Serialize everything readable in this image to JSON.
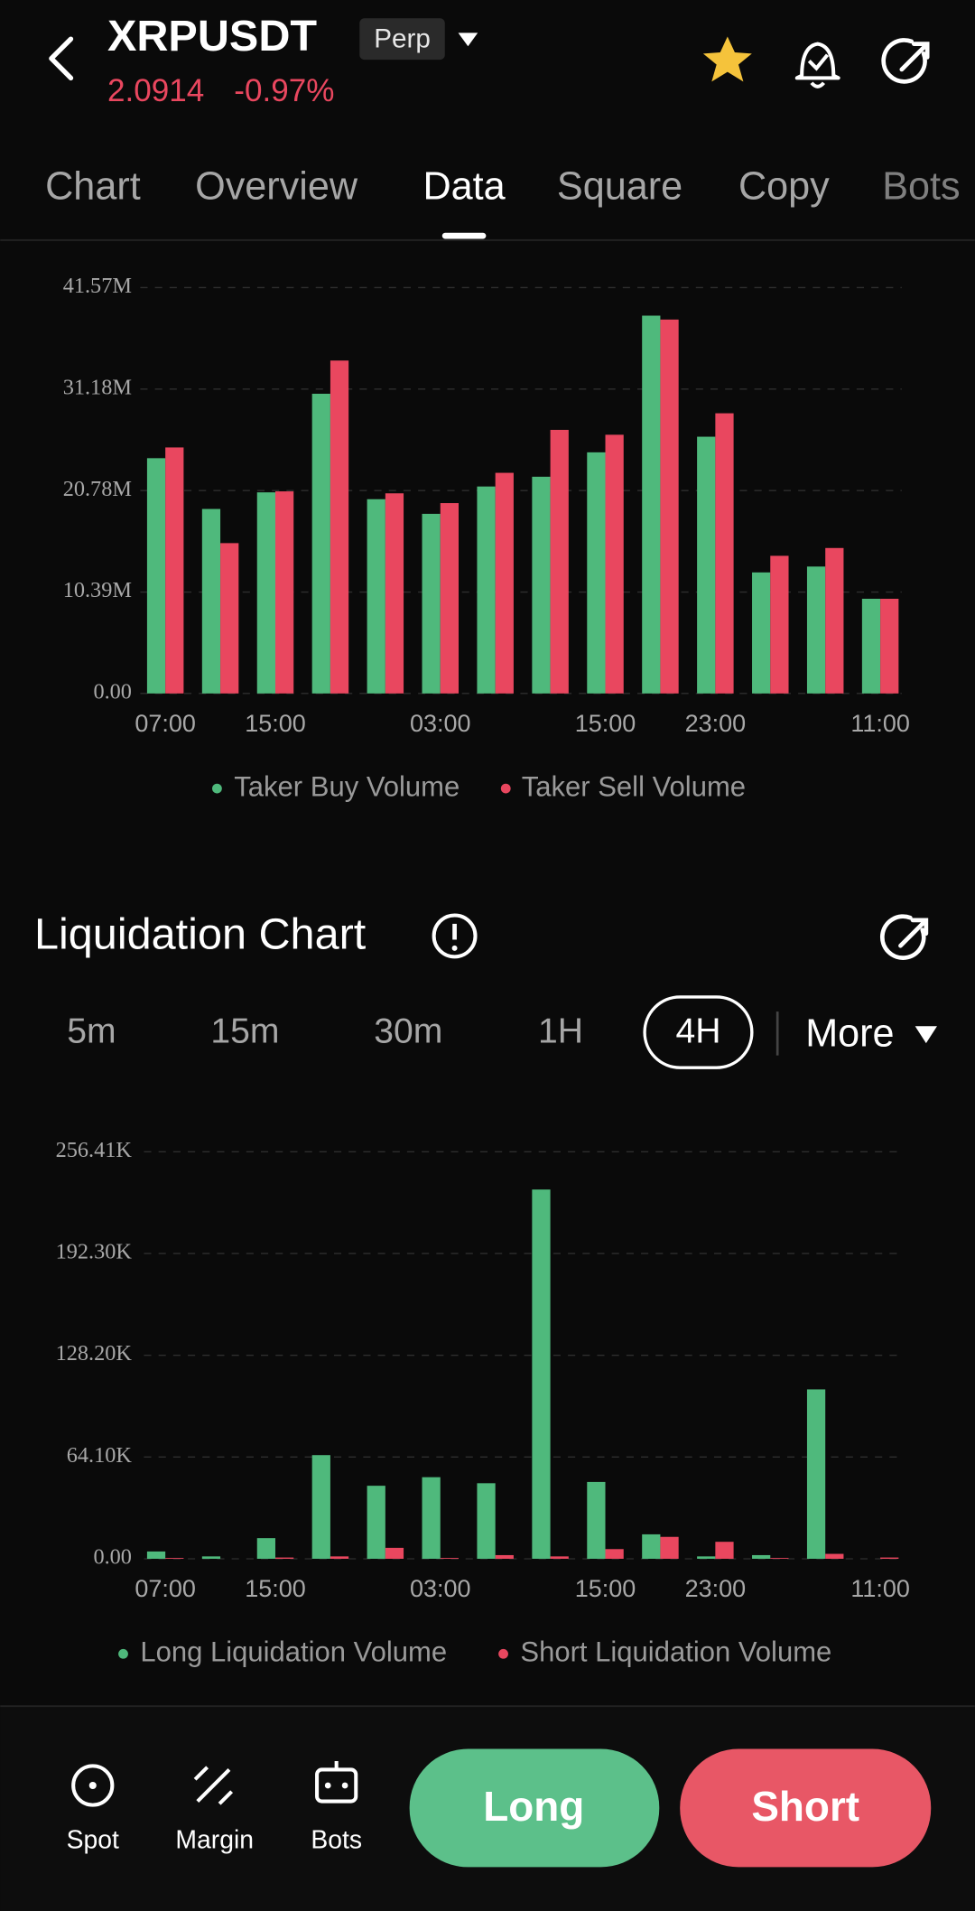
{
  "header": {
    "symbol": "XRPUSDT",
    "badge": "Perp",
    "price": "2.0914",
    "change": "-0.97%"
  },
  "tabs": [
    "Chart",
    "Overview",
    "Data",
    "Square",
    "Copy",
    "Bots"
  ],
  "active_tab": "Data",
  "chart_data": [
    {
      "type": "bar",
      "categories": [
        "07:00",
        null,
        "15:00",
        null,
        null,
        "03:00",
        null,
        null,
        "15:00",
        null,
        "23:00",
        null,
        null,
        "11:00"
      ],
      "series": [
        {
          "name": "Taker Buy Volume",
          "color": "#4fb97c",
          "values": [
            24.1,
            18.9,
            20.6,
            30.7,
            19.9,
            18.4,
            21.2,
            22.2,
            24.7,
            38.7,
            26.3,
            12.4,
            13.0,
            9.7
          ]
        },
        {
          "name": "Taker Sell Volume",
          "color": "#e9475f",
          "values": [
            25.2,
            15.4,
            20.7,
            34.1,
            20.5,
            19.5,
            22.6,
            27.0,
            26.5,
            38.3,
            28.7,
            14.1,
            14.9,
            9.7
          ]
        }
      ],
      "ylim": [
        0,
        41.57
      ],
      "yticks": [
        {
          "value": 0,
          "label": "0.00"
        },
        {
          "value": 10.39,
          "label": "10.39M"
        },
        {
          "value": 20.78,
          "label": "20.78M"
        },
        {
          "value": 31.18,
          "label": "31.18M"
        },
        {
          "value": 41.57,
          "label": "41.57M"
        }
      ],
      "grid": true,
      "legend": "bottom"
    },
    {
      "type": "bar",
      "categories": [
        "07:00",
        null,
        "15:00",
        null,
        null,
        "03:00",
        null,
        null,
        "15:00",
        null,
        "23:00",
        null,
        null,
        "11:00"
      ],
      "series": [
        {
          "name": "Long Liquidation Volume",
          "color": "#4fb97c",
          "values": [
            4.6,
            1.5,
            13.0,
            65.3,
            46.0,
            51.4,
            47.6,
            232.6,
            48.4,
            15.4,
            1.5,
            2.3,
            106.7,
            0
          ]
        },
        {
          "name": "Short Liquidation Volume",
          "color": "#e9475f",
          "values": [
            0.5,
            0,
            0.8,
            1.5,
            6.9,
            0.5,
            2.3,
            1.5,
            6.1,
            13.8,
            10.7,
            0.5,
            3.1,
            0.8
          ]
        }
      ],
      "ylim": [
        0,
        256.41
      ],
      "yticks": [
        {
          "value": 0,
          "label": "0.00"
        },
        {
          "value": 64.1,
          "label": "64.10K"
        },
        {
          "value": 128.2,
          "label": "128.20K"
        },
        {
          "value": 192.3,
          "label": "192.30K"
        },
        {
          "value": 256.41,
          "label": "256.41K"
        }
      ],
      "grid": true,
      "legend": "bottom"
    }
  ],
  "liquidation": {
    "title": "Liquidation Chart",
    "intervals": [
      "5m",
      "15m",
      "30m",
      "1H",
      "4H"
    ],
    "selected": "4H",
    "more": "More"
  },
  "bottom_nav": [
    "Spot",
    "Margin",
    "Bots"
  ],
  "actions": [
    "Long",
    "Short"
  ]
}
